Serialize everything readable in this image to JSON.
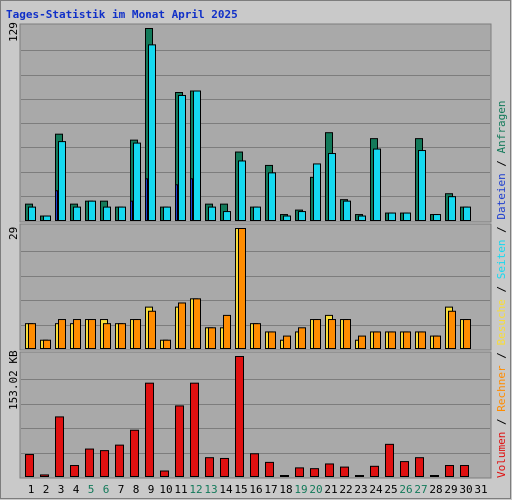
{
  "title": "Tages-Statistik im Monat April 2025",
  "colors": {
    "background": "#c9c9c9",
    "plot": "#a9a9a9",
    "grid": "#7d7d7d",
    "title": "#1030c8",
    "anfragen": "#137a5a",
    "dateien": "#1f3fcf",
    "seiten": "#15d9f0",
    "besuche": "#f7dc3a",
    "rechner": "#ff8c00",
    "volumen": "#e01010",
    "weekend_label": "#137a5a"
  },
  "right_label": {
    "volumen": "Volumen",
    "rechner": "Rechner",
    "besuche": "Besuche",
    "seiten": "Seiten",
    "dateien": "Dateien",
    "anfragen": "Anfragen",
    "sep": " / "
  },
  "chart_data": [
    {
      "type": "bar",
      "panel": "top",
      "max_label": "129",
      "ylim": [
        0,
        129
      ],
      "categories": [
        "1",
        "2",
        "3",
        "4",
        "5",
        "6",
        "7",
        "8",
        "9",
        "10",
        "11",
        "12",
        "13",
        "14",
        "15",
        "16",
        "17",
        "18",
        "19",
        "20",
        "21",
        "22",
        "23",
        "24",
        "25",
        "26",
        "27",
        "28",
        "29",
        "30",
        "31"
      ],
      "weekend_days": [
        "5",
        "6",
        "12",
        "13",
        "19",
        "20",
        "26",
        "27"
      ],
      "series": [
        {
          "name": "Anfragen",
          "values": [
            11,
            3,
            58,
            11,
            13,
            13,
            9,
            54,
            129,
            9,
            86,
            87,
            11,
            11,
            46,
            9,
            37,
            4,
            7,
            29,
            59,
            14,
            4,
            55,
            5,
            5,
            55,
            4,
            18,
            9,
            0
          ]
        },
        {
          "name": "Seiten",
          "values": [
            9,
            3,
            53,
            9,
            13,
            9,
            9,
            52,
            118,
            9,
            84,
            87,
            9,
            6,
            40,
            9,
            32,
            3,
            6,
            38,
            45,
            13,
            3,
            48,
            5,
            5,
            47,
            4,
            16,
            9,
            0
          ]
        },
        {
          "name": "Dateien",
          "values": [
            0,
            0,
            20,
            0,
            0,
            0,
            0,
            13,
            28,
            0,
            24,
            28,
            0,
            0,
            0,
            0,
            0,
            0,
            0,
            0,
            0,
            0,
            0,
            0,
            0,
            0,
            0,
            0,
            0,
            0,
            0
          ]
        }
      ]
    },
    {
      "type": "bar",
      "panel": "middle",
      "max_label": "29",
      "ylim": [
        0,
        29
      ],
      "categories": [
        "1",
        "2",
        "3",
        "4",
        "5",
        "6",
        "7",
        "8",
        "9",
        "10",
        "11",
        "12",
        "13",
        "14",
        "15",
        "16",
        "17",
        "18",
        "19",
        "20",
        "21",
        "22",
        "23",
        "24",
        "25",
        "26",
        "27",
        "28",
        "29",
        "30",
        "31"
      ],
      "series": [
        {
          "name": "Besuche",
          "values": [
            6,
            2,
            6,
            6,
            7,
            7,
            6,
            7,
            10,
            2,
            10,
            12,
            5,
            5,
            29,
            6,
            4,
            2,
            4,
            7,
            8,
            7,
            2,
            4,
            4,
            4,
            4,
            3,
            10,
            7,
            0
          ]
        },
        {
          "name": "Rechner",
          "values": [
            6,
            2,
            7,
            7,
            7,
            6,
            6,
            7,
            9,
            2,
            11,
            12,
            5,
            8,
            29,
            6,
            4,
            3,
            5,
            7,
            7,
            7,
            3,
            4,
            4,
            4,
            4,
            3,
            9,
            7,
            0
          ]
        }
      ]
    },
    {
      "type": "bar",
      "panel": "bottom",
      "max_label": "153.02 KB",
      "ylim": [
        0,
        153.02
      ],
      "categories": [
        "1",
        "2",
        "3",
        "4",
        "5",
        "6",
        "7",
        "8",
        "9",
        "10",
        "11",
        "12",
        "13",
        "14",
        "15",
        "16",
        "17",
        "18",
        "19",
        "20",
        "21",
        "22",
        "23",
        "24",
        "25",
        "26",
        "27",
        "28",
        "29",
        "30",
        "31"
      ],
      "series": [
        {
          "name": "Volumen",
          "values": [
            28,
            2,
            76,
            14,
            35,
            33,
            40,
            59,
            119,
            7,
            90,
            119,
            24,
            23,
            153,
            29,
            18,
            1,
            11,
            10,
            16,
            12,
            1,
            13,
            41,
            19,
            24,
            1,
            14,
            14,
            0
          ]
        }
      ]
    }
  ]
}
